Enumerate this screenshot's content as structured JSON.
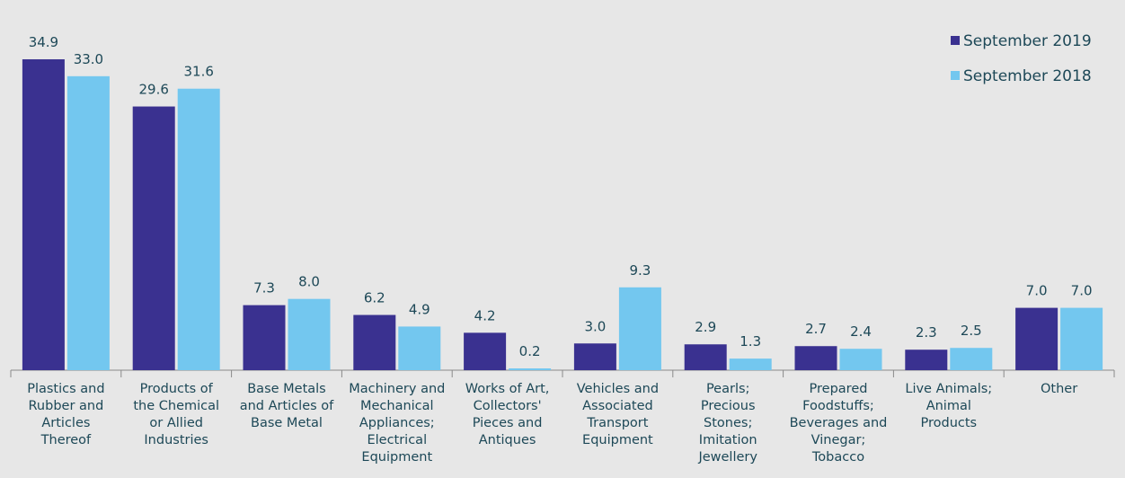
{
  "chart_data": {
    "type": "bar",
    "categories": [
      "Plastics and\nRubber and\nArticles\nThereof",
      "Products of\nthe Chemical\nor Allied\nIndustries",
      "Base Metals\nand Articles of\nBase Metal",
      "Machinery and\nMechanical\nAppliances;\nElectrical\nEquipment",
      "Works of Art,\nCollectors'\nPieces and\nAntiques",
      "Vehicles and\nAssociated\nTransport\nEquipment",
      "Pearls;\nPrecious\nStones;\nImitation\nJewellery",
      "Prepared\nFoodstuffs;\nBeverages and\nVinegar;\nTobacco",
      "Live Animals;\nAnimal\nProducts",
      "Other"
    ],
    "series": [
      {
        "name": "September 2019",
        "color": "#3a3190",
        "values": [
          34.9,
          29.6,
          7.3,
          6.2,
          4.2,
          3.0,
          2.9,
          2.7,
          2.3,
          7.0
        ],
        "value_labels": [
          "34.9",
          "29.6",
          "7.3",
          "6.2",
          "4.2",
          "3.0",
          "2.9",
          "2.7",
          "2.3",
          "7.0"
        ]
      },
      {
        "name": "September 2018",
        "color": "#73c7ef",
        "values": [
          33.0,
          31.6,
          8.0,
          4.9,
          0.2,
          9.3,
          1.3,
          2.4,
          2.5,
          7.0
        ],
        "value_labels": [
          "33.0",
          "31.6",
          "8.0",
          "4.9",
          "0.2",
          "9.3",
          "1.3",
          "2.4",
          "2.5",
          "7.0"
        ]
      }
    ],
    "ylim": [
      0,
      35
    ],
    "legend": "top-right"
  }
}
